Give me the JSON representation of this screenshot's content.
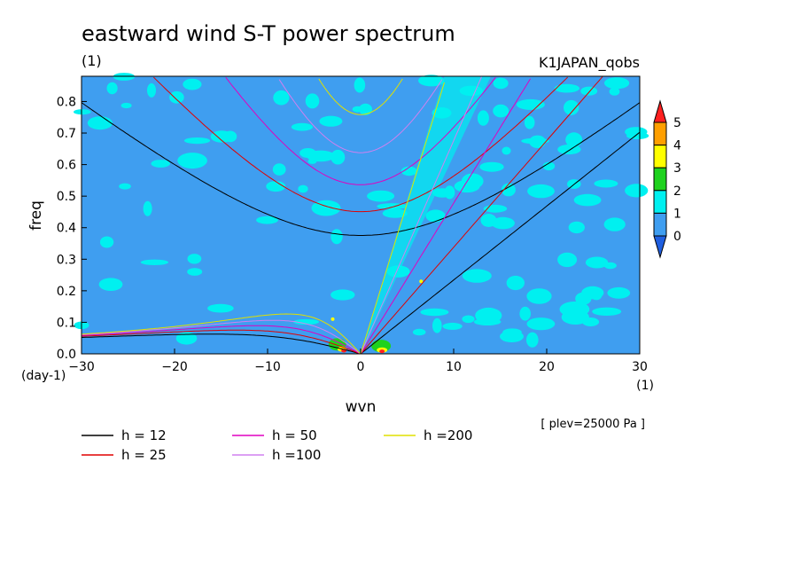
{
  "chart_data": {
    "type": "heatmap",
    "title": "eastward wind S-T power spectrum",
    "subtitle_left": "(1)",
    "subtitle_right": "K1JAPAN_qobs",
    "xlabel": "wvn",
    "ylabel": "freq",
    "x_unit": "(1)",
    "y_unit": "(day-1)",
    "note": "[ plev=25000 Pa ]",
    "xlim": [
      -30,
      30
    ],
    "ylim": [
      0,
      0.88
    ],
    "x_ticks": [
      -30,
      -20,
      -10,
      0,
      10,
      20,
      30
    ],
    "y_ticks": [
      0.0,
      0.1,
      0.2,
      0.3,
      0.4,
      0.5,
      0.6,
      0.7,
      0.8
    ],
    "colorbar": {
      "levels": [
        0,
        1,
        2,
        3,
        4,
        5
      ],
      "colors": [
        "#1f5fe0",
        "#3f9ef0",
        "#00f0f0",
        "#1ed21e",
        "#ffff00",
        "#ff9f00",
        "#ff2020"
      ],
      "extend": "both"
    },
    "series": [
      {
        "name": "h = 12",
        "h": 12,
        "color": "#000000"
      },
      {
        "name": "h = 25",
        "h": 25,
        "color": "#e00000"
      },
      {
        "name": "h = 50",
        "h": 50,
        "color": "#e000c0"
      },
      {
        "name": "h =100",
        "h": 100,
        "color": "#d080f0"
      },
      {
        "name": "h =200",
        "h": 200,
        "color": "#e0e000"
      }
    ]
  }
}
